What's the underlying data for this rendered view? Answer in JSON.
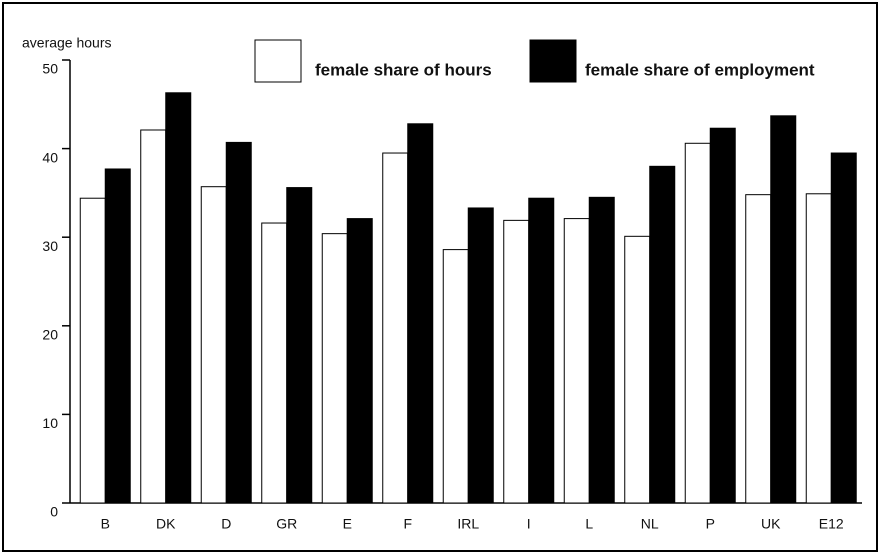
{
  "chart_data": {
    "type": "bar",
    "y_label": "average hours",
    "categories": [
      "B",
      "DK",
      "D",
      "GR",
      "E",
      "F",
      "IRL",
      "I",
      "L",
      "NL",
      "P",
      "UK",
      "E12"
    ],
    "series": [
      {
        "name": "female share of hours",
        "color": "#ffffff",
        "values": [
          34.4,
          42.1,
          35.7,
          31.6,
          30.4,
          39.5,
          28.6,
          31.9,
          32.1,
          30.1,
          40.6,
          34.8,
          34.9
        ]
      },
      {
        "name": "female share of employment",
        "color": "#000000",
        "values": [
          37.7,
          46.3,
          40.7,
          35.6,
          32.1,
          42.8,
          33.3,
          34.4,
          34.5,
          38.0,
          42.3,
          43.7,
          39.5
        ]
      }
    ],
    "ylim": [
      0,
      50
    ],
    "yticks": [
      0,
      10,
      20,
      30,
      40,
      50
    ]
  }
}
